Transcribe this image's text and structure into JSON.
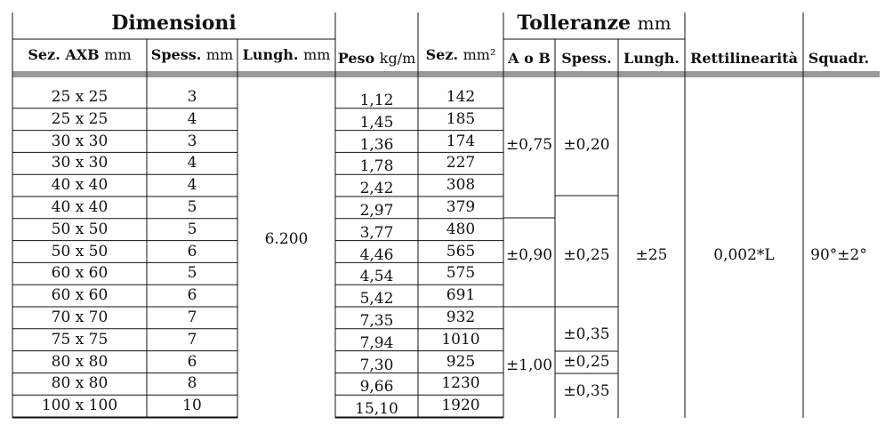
{
  "group_headers": {
    "dimensioni": "Dimensioni",
    "tolleranze": "Tolleranze",
    "tolleranze_unit": "mm"
  },
  "columns": {
    "sez_axb": {
      "label": "Sez. AXB",
      "unit": "mm"
    },
    "spess": {
      "label": "Spess.",
      "unit": "mm"
    },
    "lungh": {
      "label": "Lungh.",
      "unit": "mm"
    },
    "peso": {
      "label": "Peso",
      "unit": "kg/m"
    },
    "sez_mm2": {
      "label": "Sez.",
      "unit": "mm²"
    },
    "tol_aob": {
      "label": "A o B"
    },
    "tol_spess": {
      "label": "Spess."
    },
    "tol_lungh": {
      "label": "Lungh."
    },
    "rettilinearita": {
      "label": "Rettilinearità"
    },
    "squadr": {
      "label": "Squadr."
    }
  },
  "rows": [
    {
      "sez": "25 x 25",
      "spess": "3",
      "peso": "1,12",
      "area": "142"
    },
    {
      "sez": "25 x 25",
      "spess": "4",
      "peso": "1,45",
      "area": "185"
    },
    {
      "sez": "30 x 30",
      "spess": "3",
      "peso": "1,36",
      "area": "174"
    },
    {
      "sez": "30 x 30",
      "spess": "4",
      "peso": "1,78",
      "area": "227"
    },
    {
      "sez": "40 x 40",
      "spess": "4",
      "peso": "2,42",
      "area": "308"
    },
    {
      "sez": "40 x 40",
      "spess": "5",
      "peso": "2,97",
      "area": "379"
    },
    {
      "sez": "50 x 50",
      "spess": "5",
      "peso": "3,77",
      "area": "480"
    },
    {
      "sez": "50 x 50",
      "spess": "6",
      "peso": "4,46",
      "area": "565"
    },
    {
      "sez": "60 x 60",
      "spess": "5",
      "peso": "4,54",
      "area": "575"
    },
    {
      "sez": "60 x 60",
      "spess": "6",
      "peso": "5,42",
      "area": "691"
    },
    {
      "sez": "70 x 70",
      "spess": "7",
      "peso": "7,35",
      "area": "932"
    },
    {
      "sez": "75 x 75",
      "spess": "7",
      "peso": "7,94",
      "area": "1010"
    },
    {
      "sez": "80 x 80",
      "spess": "6",
      "peso": "7,30",
      "area": "925"
    },
    {
      "sez": "80 x 80",
      "spess": "8",
      "peso": "9,66",
      "area": "1230"
    },
    {
      "sez": "100 x 100",
      "spess": "10",
      "peso": "15,10",
      "area": "1920"
    }
  ],
  "merged": {
    "lungh": "6.200",
    "aob": [
      "±0,75",
      "±0,90",
      "±1,00"
    ],
    "tol_spess": [
      "±0,20",
      "±0,25",
      "±0,35",
      "±0,25",
      "±0,35"
    ],
    "tol_lungh": "±25",
    "rettilinearita": "0,002*L",
    "squadr": "90°±2°"
  },
  "colors": {
    "rule": "#111111",
    "header_bar": "#999999"
  }
}
